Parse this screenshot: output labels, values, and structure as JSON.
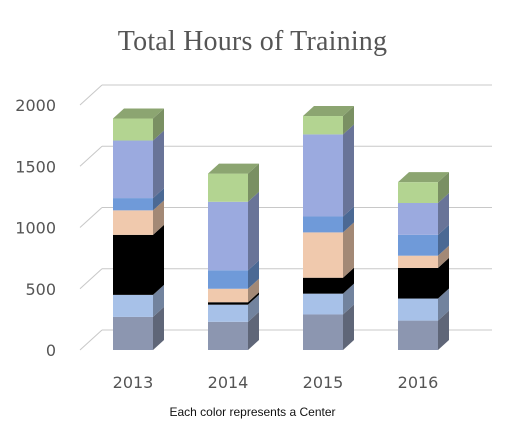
{
  "chart_data": {
    "type": "bar",
    "stacked": true,
    "three_d": true,
    "title": "Total Hours of Training",
    "note": "Each color represents a Center",
    "categories": [
      "2013",
      "2014",
      "2015",
      "2016"
    ],
    "ylim": [
      0,
      2000
    ],
    "yticks": [
      0,
      500,
      1000,
      1500,
      2000
    ],
    "grid": true,
    "series": [
      {
        "color": "#8c96b0",
        "values": [
          270,
          230,
          290,
          240
        ]
      },
      {
        "color": "#a7c1e8",
        "values": [
          180,
          140,
          170,
          180
        ]
      },
      {
        "color": "#000000",
        "values": [
          490,
          20,
          130,
          250
        ]
      },
      {
        "color": "#f0c9ad",
        "values": [
          200,
          110,
          370,
          100
        ]
      },
      {
        "color": "#6f9ad9",
        "values": [
          100,
          150,
          130,
          170
        ]
      },
      {
        "color": "#9baadf",
        "values": [
          470,
          560,
          670,
          260
        ]
      },
      {
        "color": "#b3d491",
        "values": [
          180,
          230,
          150,
          170
        ]
      }
    ]
  }
}
